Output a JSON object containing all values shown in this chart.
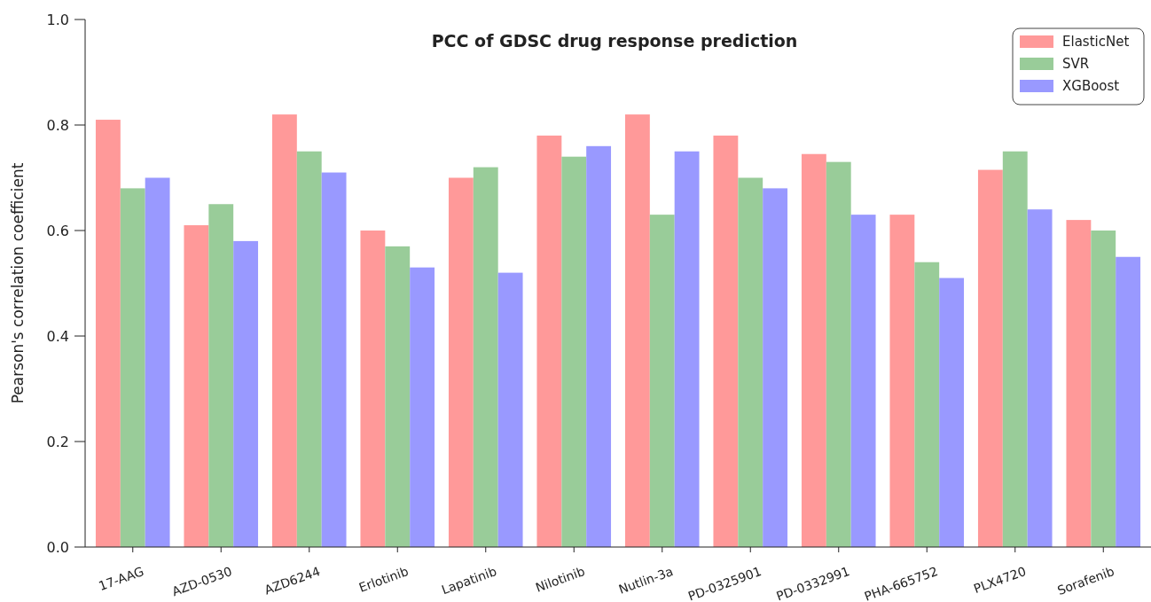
{
  "chart_data": {
    "type": "bar",
    "title": "PCC of GDSC drug response prediction",
    "ylabel": "Pearson's correlation coefficient",
    "categories": [
      "17-AAG",
      "AZD-0530",
      "AZD6244",
      "Erlotinib",
      "Lapatinib",
      "Nilotinib",
      "Nutlin-3a",
      "PD-0325901",
      "PD-0332991",
      "PHA-665752",
      "PLX4720",
      "Sorafenib"
    ],
    "series": [
      {
        "name": "ElasticNet",
        "color": "#ff9999",
        "values": [
          0.81,
          0.61,
          0.82,
          0.6,
          0.7,
          0.78,
          0.82,
          0.78,
          0.745,
          0.63,
          0.715,
          0.62
        ]
      },
      {
        "name": "SVR",
        "color": "#99cc99",
        "values": [
          0.68,
          0.65,
          0.75,
          0.57,
          0.72,
          0.74,
          0.63,
          0.7,
          0.73,
          0.54,
          0.75,
          0.6
        ]
      },
      {
        "name": "XGBoost",
        "color": "#9999ff",
        "values": [
          0.7,
          0.58,
          0.71,
          0.53,
          0.52,
          0.76,
          0.75,
          0.68,
          0.63,
          0.51,
          0.64,
          0.55
        ]
      }
    ],
    "ylim": [
      0,
      1
    ],
    "yticks": [
      {
        "value": 0,
        "label": "0.0"
      },
      0.2,
      0.4,
      0.6,
      0.8,
      {
        "value": 1,
        "label": "1.0"
      }
    ],
    "grid": false,
    "legend": "top right"
  }
}
